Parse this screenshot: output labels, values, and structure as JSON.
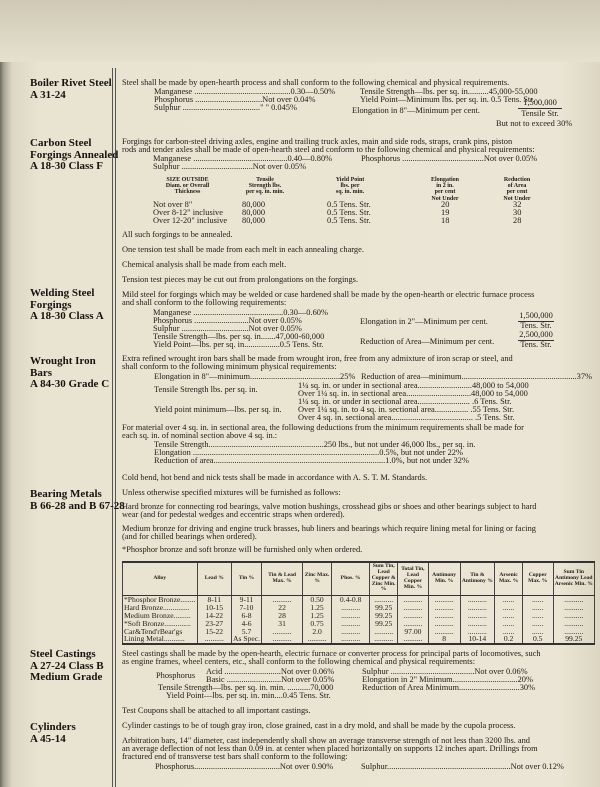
{
  "boiler": {
    "label1": "Boiler Rivet Steel",
    "label2": "A 31-24",
    "intro": "Steel shall be made by open-hearth process and shall conform to the following chemical and physical requirements.",
    "mn": "Manganese ..............................................0.30—0.50%",
    "p": "Phosphorus ................................Not over     0.04%",
    "s": "Sulphur .....................................\"     \"       0.045%",
    "tensile": "Tensile Strength—lbs. per sq. in..........45,000-55,000",
    "yield": "Yield Point—Minimum lbs. per sq. in. 0.5 Tens. Str.",
    "elong": "Elongation in 8\"—Minimum per cent.",
    "num": "1,500,000",
    "den": "Tensile Str.",
    "limit": "But not to exceed 30%"
  },
  "carbon": {
    "label1": "Carbon Steel",
    "label2": "Forgings Annealed",
    "label3": "A 18-30 Class F",
    "intro1": "Forgings for carbon-steel driving axles, engine and trailing truck axles, main and side rods, straps, crank pins, piston",
    "intro2": "rods and tender axles shall be made of open-hearth steel and conform to the following chemical and physical requirements:",
    "mn": "Manganese .............................................0.40—0.80%",
    "s": "Sulphur ..................................Not over 0.05%",
    "p": "Phosphorus .......................................Not over 0.05%",
    "headers": [
      "SIZE OUTSIDE\nDiam. or Overall\nThickness",
      "Tensile\nStrength lbs.\nper sq. in. min.",
      "Yield Point\nlbs. per\nsq. in. min.",
      "Elongation\nin 2 in.\nper cent\nNot Under",
      "Reduction\nof Area\nper cent\nNot Under"
    ],
    "rows": [
      [
        "Not over 8\"",
        "80,000",
        "0.5 Tens. Str.",
        "20",
        "32"
      ],
      [
        "Over 8-12\" inclusive",
        "80,000",
        "0.5 Tens. Str.",
        "19",
        "30"
      ],
      [
        "Over 12-20\" inclusive",
        "80,000",
        "0.5 Tens. Str.",
        "18",
        "28"
      ]
    ],
    "notes": [
      "All such forgings to be annealed.",
      "One tension test shall be made from each melt in each annealing charge.",
      "Chemical analysis shall be made from each melt.",
      "Tension test pieces may be cut out from prolongations on the forgings."
    ]
  },
  "welding": {
    "label1": "Welding Steel",
    "label2": "Forgings",
    "label3": "A 18-30 Class A",
    "intro1": "Mild steel for forgings which may be welded or case hardened shall be made by the open-hearth or electric furnace process",
    "intro2": "and shall conform to the following requirements:",
    "rows": [
      "Manganese ...........................................0.30—0.60%",
      "Phosphorus ..........................Not over        0.05%",
      "Sulphur ................................Not over        0.05%",
      "Tensile Strength—lbs. per sq. in.......47,000-60,000",
      "Yield Point—lbs. per sq. in.................0.5 Tens. Str."
    ],
    "elong": "Elongation in 2\"—Minimum per cent.",
    "elong_num": "1,500,000",
    "elong_den": "Tens. Str.",
    "red": "Reduction of Area—Minimum per cent.",
    "red_num": "2,500,000",
    "red_den": "Tens. Str."
  },
  "wrought": {
    "label1": "Wrought Iron",
    "label2": "Bars",
    "label3": "A 84-30 Grade C",
    "intro1": "Extra refined wrought iron bars shall be made from wrought iron, free from any admixture of iron scrap or steel, and",
    "intro2": "shall conform to the following minimum physical requirements:",
    "elong": "Elongation in 8\"—minimum...........................................25%",
    "red": "Reduction of area—minimum.......................................................37%",
    "tensile": "Tensile Strength lbs. per sq. in.",
    "t1": "1¼ sq. in. or under in sectional area..........................48,000 to 54,000",
    "t2": "Over 1¼ sq. in. in sectional area...............................48,000 to 54,000",
    "yield": "Yield point minimum—lbs. per sq. in.",
    "y1": "1¼ sq. in. or under in sectional area.........................    .6 Tens. Str.",
    "y2": "Over 1¼ sq. in. to 4 sq. in. sectional area................    .55 Tens. Str.",
    "y3": "Over 4 sq. in. sectional area.......................................    .5 Tens. Str.",
    "ded1": "For material over 4 sq. in. in sectional area, the following deductions from the minimum requirements shall be made for",
    "ded2": "each sq. in. of nominal section above 4 sq. in.:",
    "d_rows": [
      "Tensile Strength.......................................................250 lbs., but not under 46,000 lbs., per sq. in.",
      "Elongation .........................................................................................0.5%, but not under 22%",
      "Reduction of area..................................................................................1.0%, but not under 32%"
    ],
    "cold": "Cold bend, hot bend and nick tests shall be made in accordance with A. S. T. M. Standards."
  },
  "bearing": {
    "label1": "Bearing Metals",
    "label2": "B 66-28 and B 67-28",
    "unless": "Unless otherwise specified mixtures will be furnished as follows:",
    "hard1": "Hard bronze for connecting rod bearings, valve motion bushings, crosshead gibs or shoes and other bearings subject to hard",
    "hard2": "wear (and for pedestal wedges and eccentric straps when ordered).",
    "med1": "Medium bronze for driving and engine truck brasses, hub liners and bearings which require lining metal for lining or facing",
    "med2": "(and for chilled bearings when ordered).",
    "note": "*Phosphor bronze and soft bronze will be furnished only when ordered.",
    "headers": [
      "Alloy",
      "Lead %",
      "Tin %",
      "Tin & Lead Max. %",
      "Zinc Max. %",
      "Phos. %",
      "Sum Tin, Lead Copper & Zinc Min. %",
      "Total Tin, Lead Copper Min. %",
      "Antimony Min. %",
      "Tin & Antimony %",
      "Arsenic Max. %",
      "Copper Max. %",
      "Sum Tin Antimony Lead Arsenic Min. %"
    ],
    "rows": [
      [
        "*Phosphor Bronze........",
        "8-11",
        "9-11",
        "..........",
        "0.50",
        "0.4-0.8",
        "..........",
        "..........",
        "..........",
        "..........",
        "......",
        "......",
        ".........."
      ],
      [
        "Hard Bronze..............",
        "10-15",
        "7-10",
        "22",
        "1.25",
        "..........",
        "99.25",
        "..........",
        "..........",
        "..........",
        "......",
        "......",
        ".........."
      ],
      [
        "Medium Bronze.........",
        "14-22",
        "6-8",
        "28",
        "1.25",
        "..........",
        "99.25",
        "..........",
        "..........",
        "..........",
        "......",
        "......",
        ".........."
      ],
      [
        "*Soft Bronze..............",
        "23-27",
        "4-6",
        "31",
        "0.75",
        "..........",
        "99.25",
        "..........",
        "..........",
        "..........",
        "......",
        "......",
        ".........."
      ],
      [
        "Car&Tend'rBear'gs",
        "15-22",
        "5.7",
        "..........",
        "2.0",
        "..........",
        "..........",
        "97.00",
        "..........",
        "..........",
        "......",
        "......",
        ".........."
      ],
      [
        "Lining Metal...........",
        "..........",
        "As Spec.",
        "..........",
        "..........",
        "..........",
        "..........",
        "..........",
        "8",
        "10-14",
        "0.2",
        "0.5",
        "99.25"
      ]
    ]
  },
  "castings": {
    "label1": "Steel Castings",
    "label2": "A 27-24 Class B",
    "label3": "Medium Grade",
    "intro1": "Steel castings shall be made by the open-hearth, electric furnace or converter process for principal parts of locomotives, such",
    "intro2": "as engine frames, wheel centers, etc., shall conform to the following chemical and physical requirements:",
    "phos": "Phosphorus",
    "acid": "Acid ...........................Not over 0.06%",
    "basic": "Basic ..........................Not over 0.05%",
    "tensile": "Tensile Strength—lbs. per sq. in. min. ...........70,000",
    "yield": "Yield Point—lbs. per sq. in. min....0.45 Tens. Str.",
    "sulphur": "Sulphur ........................................Not over 0.06%",
    "elong": "Elongation in 2\" Minimum...............................20%",
    "red": "Reduction of Area Minimum.............................30%",
    "coupons": "Test Coupons shall be attached to all important castings."
  },
  "cylinders": {
    "label1": "Cylinders",
    "label2": "A 45-14",
    "intro": "Cylinder castings to be of tough gray iron, close grained, cast in a dry mold, and shall be made by the cupola process.",
    "arb1": "Arbitration bars, 14\" diameter, cast independently shall show an average transverse strength of not less than 3200 lbs. and",
    "arb2": "an average deflection of not less than 0.09 in. at center when placed horizontally on supports 12 inches apart.  Drillings from",
    "arb3": "fractured end of transverse test bars shall conform to the following:",
    "p": "Phosphorus.........................................Not over 0.90%",
    "s": "Sulphur...........................................................Not over 0.12%"
  }
}
